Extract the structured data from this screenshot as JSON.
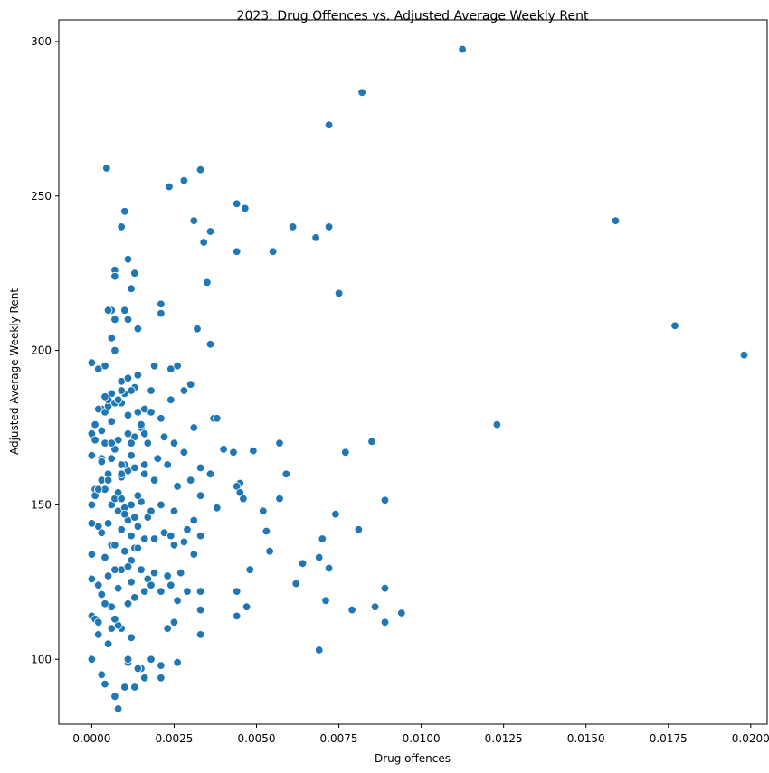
{
  "chart_data": {
    "type": "scatter",
    "title": "2023: Drug Offences vs. Adjusted Average Weekly Rent",
    "xlabel": "Drug offences",
    "ylabel": "Adjusted Average Weekly Rent",
    "xlim": [
      -0.001,
      0.0205
    ],
    "ylim": [
      79,
      307
    ],
    "xticks": [
      0.0,
      0.0025,
      0.005,
      0.0075,
      0.01,
      0.0125,
      0.015,
      0.0175,
      0.02
    ],
    "xtick_labels": [
      "0.0000",
      "0.0025",
      "0.0050",
      "0.0075",
      "0.0100",
      "0.0125",
      "0.0150",
      "0.0175",
      "0.0200"
    ],
    "yticks": [
      100,
      150,
      200,
      250,
      300
    ],
    "ytick_labels": [
      "100",
      "150",
      "200",
      "250",
      "300"
    ],
    "grid": false,
    "colors": {
      "marker": "#1f77b4",
      "edge": "#ffffff"
    },
    "series": [
      {
        "name": "points",
        "x": [
          0.01125,
          0.0082,
          0.0072,
          0.00045,
          0.0033,
          0.0028,
          0.00235,
          0.0044,
          0.00465,
          0.001,
          0.0159,
          0.0031,
          0.0009,
          0.0061,
          0.0072,
          0.0036,
          0.0068,
          0.0034,
          0.0044,
          0.0055,
          0.0011,
          0.0013,
          0.0007,
          0.0007,
          0.0035,
          0.0012,
          0.0075,
          0.0006,
          0.0021,
          0.0005,
          0.001,
          0.0007,
          0.0032,
          0.0011,
          0.0014,
          0.0006,
          0.0021,
          0.0036,
          0.0177,
          0.0198,
          0.0007,
          0.0004,
          0.0009,
          0.0014,
          0.0006,
          0.0002,
          0.0,
          0.0019,
          0.0024,
          0.0026,
          0.0011,
          0.003,
          0.0028,
          0.0018,
          0.0003,
          0.0009,
          0.0123,
          0.0037,
          0.0038,
          0.0001,
          0.0003,
          0.0015,
          0.0013,
          0.0012,
          0.0016,
          0.0021,
          0.0031,
          0.0004,
          0.0005,
          0.0025,
          0.0,
          0.0085,
          0.0049,
          0.0057,
          0.004,
          0.0077,
          0.0033,
          0.0028,
          0.002,
          0.0016,
          0.0043,
          0.0045,
          0.0044,
          0.0059,
          0.003,
          0.0036,
          0.0045,
          0.0046,
          0.0057,
          0.0009,
          0.0052,
          0.0038,
          0.0089,
          0.0074,
          0.0053,
          0.0054,
          0.0033,
          0.0081,
          0.0031,
          0.007,
          0.0001,
          0.0025,
          0.0069,
          0.0072,
          0.0064,
          0.0062,
          0.0044,
          0.0047,
          0.0026,
          0.0033,
          0.0048,
          0.0033,
          0.0089,
          0.0086,
          0.0094,
          0.0071,
          0.0079,
          0.0089,
          0.0044,
          0.0025,
          0.0033,
          0.0023,
          0.0016,
          0.0021,
          0.0069,
          0.0,
          0.0009,
          0.0007,
          0.0008,
          0.0013,
          0.0011,
          0.0015,
          0.0021,
          0.0011,
          0.0002,
          0.0,
          0.0001,
          0.0006,
          0.001,
          0.0014,
          0.0018,
          0.0026,
          0.0004,
          0.0003,
          0.0012,
          0.0008,
          0.0007,
          0.0002,
          0.0005,
          0.0011,
          0.0017,
          0.0019,
          0.0024,
          0.0029,
          0.0,
          0.0009,
          0.0006,
          0.0004,
          0.0003,
          0.0013,
          0.0016,
          0.0012,
          0.0023,
          0.0027,
          0.0015,
          0.0018,
          0.0008,
          0.0005,
          0.0002,
          0.0,
          0.0011,
          0.001,
          0.0013,
          0.0007,
          0.0021,
          0.0025,
          0.0031,
          0.0028,
          0.0033,
          0.0006,
          0.0004,
          0.0009,
          0.0016,
          0.0019,
          0.0014,
          0.0012,
          0.0003,
          0.0002,
          0.0,
          0.0008,
          0.0011,
          0.0017,
          0.0022,
          0.0024,
          0.0029,
          0.0006,
          0.0005,
          0.0013,
          0.001,
          0.0015,
          0.0007,
          0.0004,
          0.0,
          0.0001,
          0.0009,
          0.0012,
          0.0018,
          0.0021,
          0.0026,
          0.0003,
          0.0008,
          0.0014,
          0.0016,
          0.0011,
          0.0005,
          0.0002,
          0.0019,
          0.0023,
          0.0006,
          0.0,
          0.001,
          0.0013,
          0.0009,
          0.0007,
          0.0004,
          0.0012,
          0.0017,
          0.0022,
          0.0003,
          0.0008,
          0.0015,
          0.0011,
          0.0006,
          0.0001,
          0.0018,
          0.0024,
          0.0014,
          0.001,
          0.0005,
          0.0007,
          0.0002,
          0.0009,
          0.0013,
          0.0004,
          0.0016,
          0.0012,
          0.0008,
          0.0011,
          0.0006,
          0.0003,
          0.0005,
          0.0009,
          0.001,
          0.0014,
          0.0007,
          0.0012
        ],
        "y": [
          297.5,
          283.5,
          273,
          259,
          258.5,
          255,
          253,
          247.5,
          246,
          245,
          242,
          242,
          240,
          240,
          240,
          238.5,
          236.5,
          235,
          232,
          232,
          229.5,
          225,
          226,
          224,
          222,
          220,
          218.5,
          213,
          212,
          213,
          213,
          210,
          207,
          210,
          207,
          204,
          215,
          202,
          208,
          198.5,
          200,
          195,
          190,
          192,
          186,
          194,
          196,
          195,
          194,
          195,
          191,
          189,
          187,
          187,
          181,
          183,
          176,
          178,
          178,
          176,
          174,
          175,
          172,
          170,
          173,
          178,
          175,
          180,
          182,
          170,
          173,
          170.5,
          167.5,
          170,
          168,
          167,
          162,
          167,
          165,
          163,
          167,
          157,
          156,
          160,
          158,
          160,
          154,
          152,
          152,
          159,
          148,
          149,
          151.5,
          147,
          141.5,
          135,
          153,
          142,
          145,
          139,
          155,
          148,
          133,
          129.5,
          131,
          124.5,
          122,
          117,
          119,
          122,
          129,
          116,
          123,
          117,
          115,
          119,
          116,
          112,
          114,
          112,
          108,
          110,
          94,
          94,
          103,
          100,
          110,
          88,
          84,
          91,
          99,
          97,
          98,
          100,
          108,
          114,
          113,
          110,
          91,
          97,
          100,
          99,
          92,
          95,
          107,
          111,
          113,
          112,
          105,
          118,
          126,
          128,
          124,
          122,
          134,
          129,
          117,
          118,
          121,
          120,
          122,
          132,
          127,
          128,
          129,
          124,
          123,
          127,
          124,
          126,
          130,
          135,
          136,
          129,
          122,
          137,
          134,
          138,
          140,
          137,
          133,
          142,
          139,
          139,
          136,
          140,
          141,
          143,
          144,
          148,
          145,
          146,
          141,
          140,
          142,
          150,
          144,
          146,
          149,
          151,
          152,
          155,
          150,
          153,
          152,
          150,
          148,
          150,
          156,
          158,
          154,
          153,
          160,
          161,
          160,
          155,
          158,
          163,
          165,
          166,
          163,
          162,
          163,
          168,
          170,
          166,
          170,
          172,
          165,
          171,
          176,
          173,
          177,
          171,
          180,
          184,
          180,
          186,
          184,
          183,
          181,
          187,
          188,
          185,
          181,
          187,
          184,
          179,
          170,
          164,
          158,
          160,
          147,
          143,
          137,
          125
        ]
      }
    ]
  }
}
